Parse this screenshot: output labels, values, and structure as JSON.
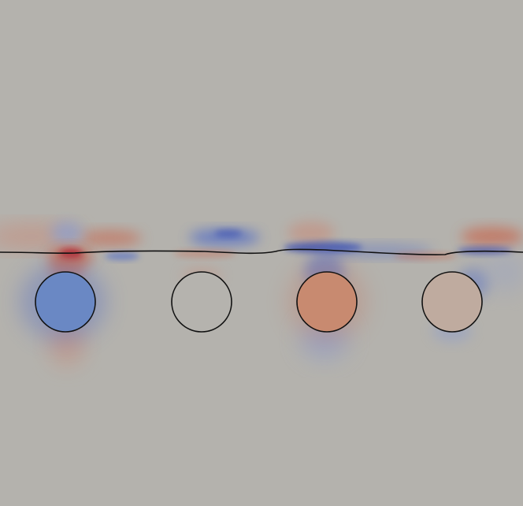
{
  "scene": {
    "colors": {
      "background": "#b4b2ad",
      "negative": "#3b4cc0",
      "positive": "#b40426",
      "outline": "#111111"
    },
    "cylinders": [
      {
        "fill": "#6a88c4"
      },
      {
        "fill": "#b5b3ae"
      },
      {
        "fill": "#c88a70"
      },
      {
        "fill": "#bfab9f"
      }
    ]
  }
}
